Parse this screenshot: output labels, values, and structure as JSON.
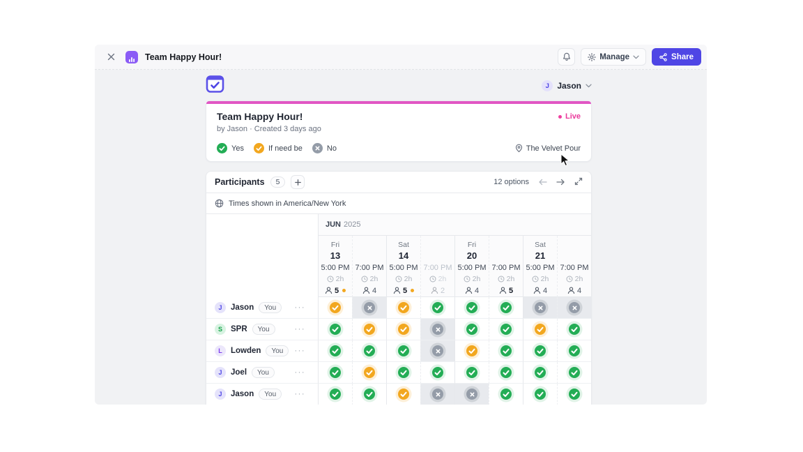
{
  "topbar": {
    "title": "Team Happy Hour!",
    "manage_label": "Manage",
    "share_label": "Share"
  },
  "userbar": {
    "avatar_initial": "J",
    "user_name": "Jason"
  },
  "event": {
    "title": "Team Happy Hour!",
    "byline": "by Jason  ·  Created 3 days ago",
    "live_label": "Live",
    "location": "The Velvet Pour",
    "legend": [
      {
        "type": "yes",
        "label": "Yes"
      },
      {
        "type": "ifneedbe",
        "label": "If need be"
      },
      {
        "type": "no",
        "label": "No"
      }
    ]
  },
  "participants_panel": {
    "title": "Participants",
    "count": "5",
    "options_label": "12 options",
    "timezone_note": "Times shown in America/New York",
    "month": "JUN",
    "year": "2025"
  },
  "schedule": {
    "groups": [
      {
        "day": "Fri",
        "date": "13",
        "slots": [
          {
            "time": "5:00 PM",
            "duration": "2h",
            "count": "5",
            "dot": true,
            "bold": true
          },
          {
            "time": "7:00 PM",
            "duration": "2h",
            "count": "4"
          }
        ]
      },
      {
        "day": "Sat",
        "date": "14",
        "slots": [
          {
            "time": "5:00 PM",
            "duration": "2h",
            "count": "5",
            "dot": true,
            "bold": true
          },
          {
            "time": "7:00 PM",
            "duration": "2h",
            "count": "2",
            "muted": true
          }
        ]
      },
      {
        "day": "Fri",
        "date": "20",
        "slots": [
          {
            "time": "5:00 PM",
            "duration": "2h",
            "count": "4"
          },
          {
            "time": "7:00 PM",
            "duration": "2h",
            "count": "5",
            "bold": true
          }
        ]
      },
      {
        "day": "Sat",
        "date": "21",
        "slots": [
          {
            "time": "5:00 PM",
            "duration": "2h",
            "count": "4"
          },
          {
            "time": "7:00 PM",
            "duration": "2h",
            "count": "4"
          }
        ]
      }
    ],
    "rows": [
      {
        "initial": "J",
        "name": "Jason",
        "badge": "You",
        "avatar_color": "indigo",
        "responses": [
          "ifneedbe",
          "no",
          "ifneedbe",
          "yes",
          "yes",
          "yes",
          "no",
          "no"
        ]
      },
      {
        "initial": "S",
        "name": "SPR",
        "badge": "You",
        "avatar_color": "green",
        "responses": [
          "yes",
          "ifneedbe",
          "ifneedbe",
          "no",
          "yes",
          "yes",
          "ifneedbe",
          "yes"
        ]
      },
      {
        "initial": "L",
        "name": "Lowden",
        "badge": "You",
        "avatar_color": "violet",
        "responses": [
          "yes",
          "yes",
          "yes",
          "no",
          "ifneedbe",
          "yes",
          "yes",
          "yes"
        ]
      },
      {
        "initial": "J",
        "name": "Joel",
        "badge": "You",
        "avatar_color": "indigo",
        "responses": [
          "yes",
          "ifneedbe",
          "yes",
          "yes",
          "yes",
          "yes",
          "yes",
          "yes"
        ]
      },
      {
        "initial": "J",
        "name": "Jason",
        "badge": "You",
        "avatar_color": "indigo",
        "responses": [
          "yes",
          "yes",
          "ifneedbe",
          "no",
          "no",
          "yes",
          "yes",
          "yes"
        ]
      }
    ]
  },
  "colors": {
    "yes_green": "#23ad55",
    "ifneedbe_amber": "#f2a71f",
    "no_gray": "#949ca8",
    "accent_pink": "#e156c4",
    "live_pink": "#ea3a9c",
    "accent_indigo": "#4f46e5"
  }
}
